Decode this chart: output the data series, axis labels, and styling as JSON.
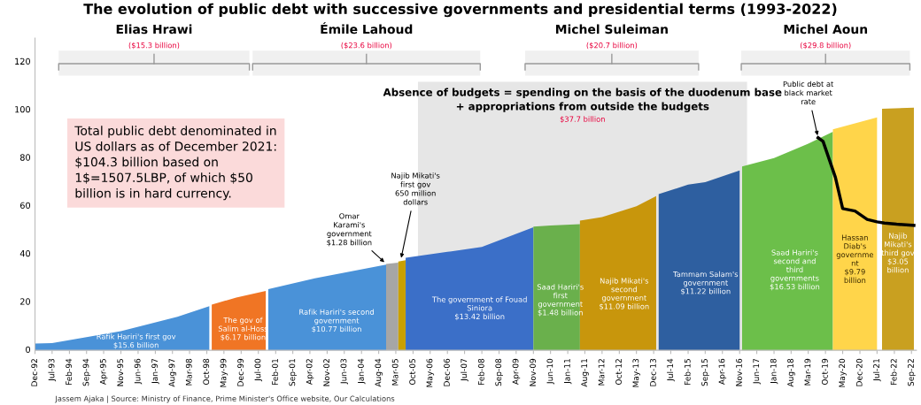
{
  "chart_data": {
    "type": "area",
    "title": "The evolution of public debt with successive governments and presidential terms (1993-2022)",
    "ylim": [
      0,
      130
    ],
    "yticks": [
      0,
      20,
      40,
      60,
      80,
      100,
      120
    ],
    "xlim": [
      "1992-12",
      "2022-11"
    ],
    "xticks": [
      {
        "value": "1992-12",
        "label": "Dec-92"
      },
      {
        "value": "1993-07",
        "label": "Jul-93"
      },
      {
        "value": "1994-02",
        "label": "Feb-94"
      },
      {
        "value": "1994-09",
        "label": "Sep-94"
      },
      {
        "value": "1995-04",
        "label": "Apr-95"
      },
      {
        "value": "1995-11",
        "label": "Nov-95"
      },
      {
        "value": "1996-06",
        "label": "Jun-96"
      },
      {
        "value": "1997-01",
        "label": "Jan-97"
      },
      {
        "value": "1997-08",
        "label": "Aug-97"
      },
      {
        "value": "1998-03",
        "label": "Mar-98"
      },
      {
        "value": "1998-10",
        "label": "Oct-98"
      },
      {
        "value": "1999-05",
        "label": "May-99"
      },
      {
        "value": "1999-12",
        "label": "Dec-99"
      },
      {
        "value": "2000-07",
        "label": "Jul-00"
      },
      {
        "value": "2001-02",
        "label": "Feb-01"
      },
      {
        "value": "2001-09",
        "label": "Sep-01"
      },
      {
        "value": "2002-04",
        "label": "Apr-02"
      },
      {
        "value": "2002-11",
        "label": "Nov-02"
      },
      {
        "value": "2003-06",
        "label": "Jun-03"
      },
      {
        "value": "2004-01",
        "label": "Jan-04"
      },
      {
        "value": "2004-08",
        "label": "Aug-04"
      },
      {
        "value": "2005-03",
        "label": "Mar-05"
      },
      {
        "value": "2005-10",
        "label": "Oct-05"
      },
      {
        "value": "2006-05",
        "label": "May-06"
      },
      {
        "value": "2006-12",
        "label": "Dec-06"
      },
      {
        "value": "2007-07",
        "label": "Jul-07"
      },
      {
        "value": "2008-02",
        "label": "Feb-08"
      },
      {
        "value": "2008-09",
        "label": "Sep-08"
      },
      {
        "value": "2009-04",
        "label": "Apr-09"
      },
      {
        "value": "2009-11",
        "label": "Nov-09"
      },
      {
        "value": "2010-06",
        "label": "Jun-10"
      },
      {
        "value": "2011-01",
        "label": "Jan-11"
      },
      {
        "value": "2011-08",
        "label": "Aug-11"
      },
      {
        "value": "2012-03",
        "label": "Mar-12"
      },
      {
        "value": "2012-10",
        "label": "Oct-12"
      },
      {
        "value": "2013-05",
        "label": "May-13"
      },
      {
        "value": "2013-12",
        "label": "Dec-13"
      },
      {
        "value": "2014-07",
        "label": "Jul-14"
      },
      {
        "value": "2015-02",
        "label": "Feb-15"
      },
      {
        "value": "2015-09",
        "label": "Sep-15"
      },
      {
        "value": "2016-04",
        "label": "Apr-16"
      },
      {
        "value": "2016-11",
        "label": "Nov-16"
      },
      {
        "value": "2017-06",
        "label": "Jun-17"
      },
      {
        "value": "2018-01",
        "label": "Jan-18"
      },
      {
        "value": "2018-08",
        "label": "Aug-18"
      },
      {
        "value": "2019-03",
        "label": "Mar-19"
      },
      {
        "value": "2019-10",
        "label": "Oct-19"
      },
      {
        "value": "2020-05",
        "label": "May-20"
      },
      {
        "value": "2020-12",
        "label": "Dec-20"
      },
      {
        "value": "2021-07",
        "label": "Jul-21"
      },
      {
        "value": "2022-02",
        "label": "Feb-22"
      },
      {
        "value": "2022-09",
        "label": "Sep-22"
      }
    ],
    "series": [
      {
        "name": "Rafik Hariri's first gov\n$15.6 billion",
        "color": "#4a92d8",
        "x": [
          "1992-12",
          "1993-07",
          "1995-11",
          "1997-10",
          "1998-11"
        ],
        "values": [
          2.8,
          3,
          8,
          14,
          18.4
        ]
      },
      {
        "name": "The gov of\nSalim al-Hoss\n$6.17 billion",
        "color": "#f07524",
        "x": [
          "1998-12",
          "1999-10",
          "2000-10"
        ],
        "values": [
          19,
          22,
          24.7
        ]
      },
      {
        "name": "Rafik Hariri's second\ngovernment\n$10.77 billion",
        "color": "#4a92d8",
        "x": [
          "2000-11",
          "2002-06",
          "2004-11"
        ],
        "values": [
          25.5,
          30,
          35.7
        ]
      },
      {
        "color": "#a6a6a6",
        "x": [
          "2004-11",
          "2005-04"
        ],
        "values": [
          36,
          36.5
        ]
      },
      {
        "color": "#c9a000",
        "x": [
          "2005-04",
          "2005-07"
        ],
        "values": [
          37,
          37.5
        ]
      },
      {
        "name": "The government of Fouad\nSiniora\n$13.42 billion",
        "color": "#3b6fc8",
        "x": [
          "2005-07",
          "2006-12",
          "2008-02",
          "2009-11"
        ],
        "values": [
          38.5,
          41,
          43,
          51.2
        ]
      },
      {
        "name": "Saad Hariri's\nfirst\ngovernment\n$1.48 billion",
        "color": "#6ab04c",
        "x": [
          "2009-11",
          "2010-06",
          "2011-06"
        ],
        "values": [
          51.5,
          52,
          52.5
        ]
      },
      {
        "name": "Najib Mikati's\nsecond\ngovernment\n$11.09 billion",
        "color": "#c8960c",
        "x": [
          "2011-06",
          "2012-03",
          "2013-05",
          "2014-01"
        ],
        "values": [
          54,
          55.5,
          60,
          64.2
        ]
      },
      {
        "name": "Tammam Salam's\ngovernment\n$11.22 billion",
        "color": "#2e5fa0",
        "x": [
          "2014-02",
          "2015-02",
          "2015-09",
          "2016-11"
        ],
        "values": [
          65,
          69,
          70,
          74.9
        ]
      },
      {
        "name": "Saad Hariri's\nsecond and\nthird\ngovernments\n$16.53 billion",
        "color": "#6cbf4a",
        "x": [
          "2016-12",
          "2018-01",
          "2019-03",
          "2020-01"
        ],
        "values": [
          76.5,
          80,
          86,
          91
        ]
      },
      {
        "name": "Hassan\nDiab's\ngovernme\nnt\n$9.79\nbillion",
        "color": "#ffd54a",
        "x": [
          "2020-01",
          "2021-07"
        ],
        "values": [
          92,
          97
        ]
      },
      {
        "name": "Najib\nMikati's\nthird gov\n$3.05\nbillion",
        "color": "#c9a020",
        "x": [
          "2021-09",
          "2022-10"
        ],
        "values": [
          100.6,
          101
        ]
      },
      {
        "type": "line",
        "color": "#000000",
        "x": [
          "2019-07",
          "2019-09",
          "2020-02",
          "2020-05",
          "2020-10",
          "2021-03",
          "2021-07",
          "2021-10",
          "2022-03",
          "2022-10"
        ],
        "values": [
          88.5,
          87,
          72,
          59,
          58,
          54.5,
          53.5,
          53,
          52.5,
          52
        ]
      }
    ],
    "bands": [
      {
        "axis": "x",
        "from": "2005-12",
        "to": "2017-02",
        "color": "#e6e6e6",
        "label": "Absence of budgets = spending on the basis of the duodenum base\n+ appropriations from outside the budgets\n$37.7 billion"
      },
      {
        "axis": "x",
        "from": "1993-09",
        "to": "2000-04",
        "label": "Elias Hrawi\n($15.3 billion)"
      },
      {
        "axis": "x",
        "from": "2000-04",
        "to": "2008-02",
        "label": "Émile Lahoud\n($23.6 billion)"
      },
      {
        "axis": "x",
        "from": "2009-07",
        "to": "2015-07",
        "label": "Michel Suleiman\n($20.7 billion)"
      },
      {
        "axis": "x",
        "from": "2016-11",
        "to": "2022-09",
        "label": "Michel Aoun\n($29.8 billion)"
      }
    ],
    "annotations": [
      {
        "text": "Omar\nKarami's\ngovernment\n$1.28 billion",
        "x": "2004-11",
        "y": 36
      },
      {
        "text": "Najib Mikati's\nfirst gov\n650 million\ndollars",
        "x": "2005-05",
        "y": 37.5
      },
      {
        "text": "Public debt at\nblack market\nrate",
        "x": "2019-07",
        "y": 88.5
      },
      "Total public debt denominated in\nUS dollars as of December 2021:\n$104.3 billion based on\n1$=1507.5LBP, of which $50\nbillion is in hard currency.",
      "Jassem Ajaka | Source: Ministry of Finance, Prime Minister's Office website, Our Calculations"
    ],
    "legend": false,
    "grid": false
  }
}
